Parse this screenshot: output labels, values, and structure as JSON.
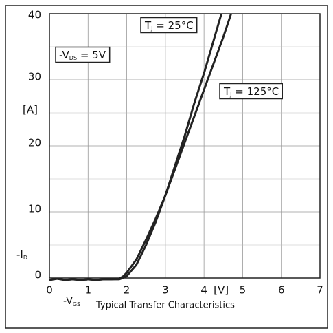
{
  "chart_data": {
    "type": "line",
    "title": "Typical Transfer Characteristics",
    "x_label": {
      "main": "-V",
      "sub": "GS"
    },
    "x_unit": "[V]",
    "y_unit": "[A]",
    "y_label": {
      "main": "-I",
      "sub": "D"
    },
    "xlim": [
      0,
      7
    ],
    "xticks": [
      0,
      1,
      2,
      3,
      4,
      5,
      6,
      7
    ],
    "ylim": [
      0,
      40
    ],
    "yticks": [
      0,
      10,
      20,
      30,
      40
    ],
    "minor_yticks": [
      5,
      15,
      25,
      35
    ],
    "grid": true,
    "annotations": [
      {
        "main": "-V",
        "sub": "DS",
        "rest": " = 5V"
      },
      {
        "main": "T",
        "sub": "J",
        "rest": " = 25°C"
      },
      {
        "main": "T",
        "sub": "J",
        "rest": " = 125°C"
      }
    ],
    "series": [
      {
        "color": "#222222",
        "x": [
          0,
          0.2,
          0.4,
          0.6,
          0.8,
          1,
          1.2,
          1.4,
          1.6,
          1.8,
          1.9,
          2,
          2.25,
          2.5,
          2.75,
          3,
          3.25,
          3.5,
          3.75,
          4,
          4.25,
          4.45
        ],
        "values": [
          -0.3,
          -0.1,
          -0.3,
          -0.2,
          -0.3,
          -0.2,
          -0.3,
          -0.2,
          -0.2,
          -0.2,
          0,
          0.3,
          2,
          5,
          8.5,
          12.5,
          17,
          21.5,
          26.5,
          31,
          36,
          40
        ]
      },
      {
        "color": "#222222",
        "x": [
          0,
          0.2,
          0.4,
          0.6,
          0.8,
          1,
          1.2,
          1.4,
          1.6,
          1.8,
          1.9,
          2,
          2.25,
          2.5,
          2.75,
          3,
          3.25,
          3.5,
          3.75,
          4,
          4.25,
          4.5,
          4.7
        ],
        "values": [
          -0.3,
          -0.1,
          -0.3,
          -0.2,
          -0.3,
          -0.2,
          -0.3,
          -0.2,
          -0.2,
          -0.1,
          0.2,
          0.8,
          2.8,
          5.8,
          9,
          12.5,
          16.5,
          20.5,
          24.5,
          28.5,
          32.5,
          36.5,
          40
        ]
      }
    ]
  }
}
